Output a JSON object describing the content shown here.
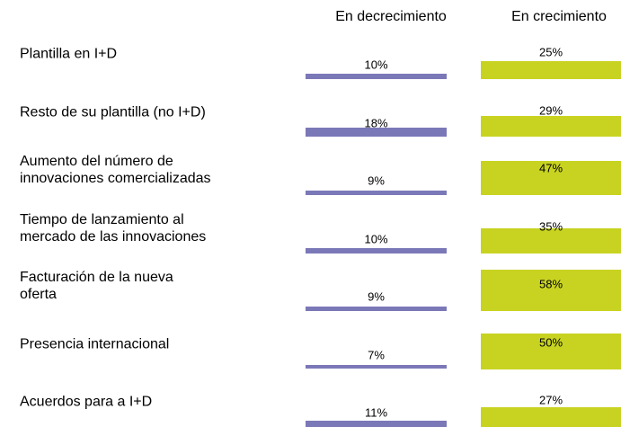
{
  "chart_data": {
    "type": "bar",
    "categories": [
      "Plantilla en I+D",
      "Resto de su plantilla (no I+D)",
      "Aumento del número de\ninnovaciones comercializadas",
      "Tiempo de lanzamiento al\nmercado de las innovaciones",
      "Facturación de la nueva\noferta",
      "Presencia internacional",
      "Acuerdos para a I+D"
    ],
    "series": [
      {
        "name": "En decrecimiento",
        "color": "#7b78b8",
        "values": [
          10,
          18,
          9,
          10,
          9,
          7,
          11
        ],
        "value_labels": [
          "10%",
          "18%",
          "9%",
          "10%",
          "9%",
          "7%",
          "11%"
        ]
      },
      {
        "name": "En crecimiento",
        "color": "#c8d321",
        "values": [
          25,
          29,
          47,
          35,
          58,
          50,
          27
        ],
        "value_labels": [
          "25%",
          "29%",
          "47%",
          "35%",
          "58%",
          "50%",
          "27%"
        ]
      }
    ]
  }
}
